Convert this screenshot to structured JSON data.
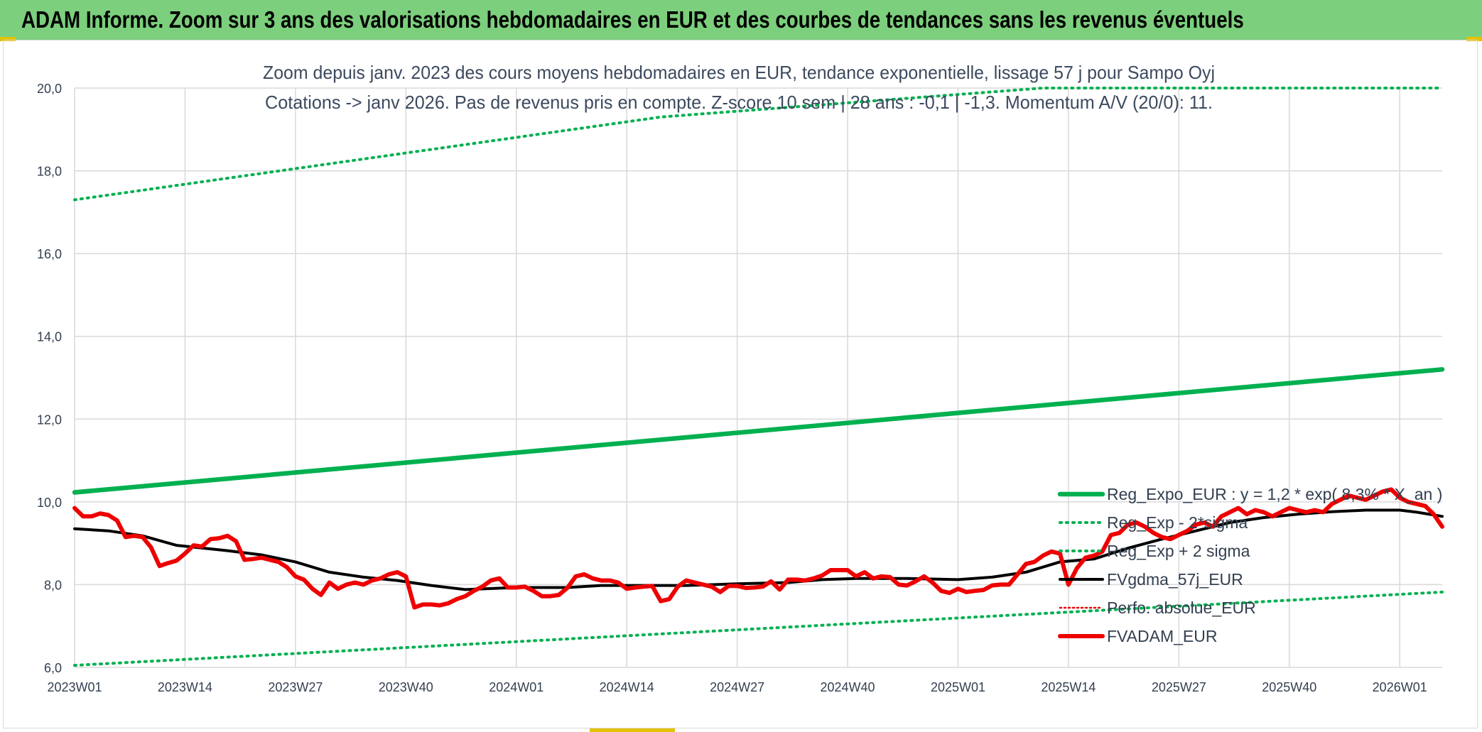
{
  "header": {
    "title": "ADAM Informe. Zoom sur 3 ans des valorisations hebdomadaires en EUR et des courbes de tendances sans les revenus éventuels"
  },
  "colors": {
    "banner": "#7ccf7c",
    "reg_expo": "#00b050",
    "fvadam": "#ee0000",
    "fvgdma": "#000000",
    "perfo": "#ee0000",
    "grid": "#d9d9d9"
  },
  "chart_data": {
    "type": "line",
    "subtitle_lines": [
      "Zoom depuis janv. 2023 des cours moyens hebdomadaires en EUR, tendance exponentielle, lissage 57 j pour Sampo Oyj",
      "Cotations -> janv 2026. Pas de revenus pris en compte. Z-score 10 sem | 28 ans : -0,1 | -1,3. Momentum A/V (20/0): 11."
    ],
    "ylim": [
      6,
      20
    ],
    "y_ticks": [
      "6,0",
      "8,0",
      "10,0",
      "12,0",
      "14,0",
      "16,0",
      "18,0",
      "20,0"
    ],
    "x_ticks": [
      "2023W01",
      "2023W14",
      "2023W27",
      "2023W40",
      "2024W01",
      "2024W14",
      "2024W27",
      "2024W40",
      "2025W01",
      "2025W14",
      "2025W27",
      "2025W40",
      "2026W01"
    ],
    "x_range_weeks": [
      0,
      161
    ],
    "grid": true,
    "legend_position": "right-bottom",
    "series": [
      {
        "name": "Reg_Expo_EUR : y = 1,2 * exp( 8,3% * X_an )",
        "style": "solid-thick",
        "color": "#00b050",
        "points": [
          [
            0,
            10.23
          ],
          [
            161,
            13.2
          ]
        ]
      },
      {
        "name": "Reg_Exp - 2*sigma",
        "style": "dotted",
        "color": "#00b050",
        "points": [
          [
            0,
            6.05
          ],
          [
            161,
            7.82
          ]
        ]
      },
      {
        "name": "Reg_Exp + 2 sigma",
        "style": "dotted",
        "color": "#00b050",
        "points": [
          [
            0,
            17.3
          ],
          [
            69,
            19.3
          ],
          [
            114,
            20.0
          ],
          [
            161,
            20.0
          ]
        ]
      },
      {
        "name": "FVgdma_57j_EUR",
        "style": "solid",
        "color": "#000000",
        "points": [
          [
            0,
            9.35
          ],
          [
            4,
            9.3
          ],
          [
            8,
            9.18
          ],
          [
            12,
            8.95
          ],
          [
            18,
            8.82
          ],
          [
            22,
            8.72
          ],
          [
            26,
            8.55
          ],
          [
            30,
            8.3
          ],
          [
            34,
            8.18
          ],
          [
            38,
            8.1
          ],
          [
            42,
            7.98
          ],
          [
            46,
            7.88
          ],
          [
            52,
            7.93
          ],
          [
            58,
            7.93
          ],
          [
            62,
            7.98
          ],
          [
            66,
            7.98
          ],
          [
            72,
            7.98
          ],
          [
            78,
            8.02
          ],
          [
            84,
            8.05
          ],
          [
            88,
            8.12
          ],
          [
            92,
            8.15
          ],
          [
            98,
            8.15
          ],
          [
            104,
            8.12
          ],
          [
            108,
            8.18
          ],
          [
            112,
            8.3
          ],
          [
            116,
            8.55
          ],
          [
            120,
            8.62
          ],
          [
            124,
            8.88
          ],
          [
            128,
            9.1
          ],
          [
            132,
            9.3
          ],
          [
            136,
            9.5
          ],
          [
            140,
            9.62
          ],
          [
            144,
            9.7
          ],
          [
            148,
            9.76
          ],
          [
            152,
            9.8
          ],
          [
            156,
            9.8
          ],
          [
            158,
            9.75
          ],
          [
            161,
            9.65
          ]
        ]
      },
      {
        "name": "Perfo. absolue_EUR",
        "style": "dotted-thin",
        "color": "#ee0000",
        "points": []
      },
      {
        "name": "FVADAM_EUR",
        "style": "solid-thick",
        "color": "#ee0000",
        "points": [
          [
            0,
            9.85
          ],
          [
            1,
            9.65
          ],
          [
            2,
            9.65
          ],
          [
            3,
            9.72
          ],
          [
            4,
            9.68
          ],
          [
            5,
            9.55
          ],
          [
            6,
            9.15
          ],
          [
            7,
            9.18
          ],
          [
            8,
            9.15
          ],
          [
            9,
            8.9
          ],
          [
            10,
            8.45
          ],
          [
            11,
            8.52
          ],
          [
            12,
            8.58
          ],
          [
            13,
            8.75
          ],
          [
            14,
            8.95
          ],
          [
            15,
            8.92
          ],
          [
            16,
            9.1
          ],
          [
            17,
            9.12
          ],
          [
            18,
            9.18
          ],
          [
            19,
            9.05
          ],
          [
            20,
            8.6
          ],
          [
            21,
            8.62
          ],
          [
            22,
            8.65
          ],
          [
            23,
            8.6
          ],
          [
            24,
            8.55
          ],
          [
            25,
            8.42
          ],
          [
            26,
            8.2
          ],
          [
            27,
            8.12
          ],
          [
            28,
            7.9
          ],
          [
            29,
            7.75
          ],
          [
            30,
            8.05
          ],
          [
            31,
            7.9
          ],
          [
            32,
            8.0
          ],
          [
            33,
            8.05
          ],
          [
            34,
            8.0
          ],
          [
            35,
            8.1
          ],
          [
            36,
            8.15
          ],
          [
            37,
            8.25
          ],
          [
            38,
            8.3
          ],
          [
            39,
            8.2
          ],
          [
            40,
            7.45
          ],
          [
            41,
            7.52
          ],
          [
            42,
            7.52
          ],
          [
            43,
            7.5
          ],
          [
            44,
            7.55
          ],
          [
            45,
            7.65
          ],
          [
            46,
            7.72
          ],
          [
            47,
            7.85
          ],
          [
            48,
            7.95
          ],
          [
            49,
            8.1
          ],
          [
            50,
            8.15
          ],
          [
            51,
            7.93
          ],
          [
            52,
            7.93
          ],
          [
            53,
            7.95
          ],
          [
            54,
            7.85
          ],
          [
            55,
            7.72
          ],
          [
            56,
            7.72
          ],
          [
            57,
            7.75
          ],
          [
            58,
            7.92
          ],
          [
            59,
            8.2
          ],
          [
            60,
            8.25
          ],
          [
            61,
            8.15
          ],
          [
            62,
            8.1
          ],
          [
            63,
            8.1
          ],
          [
            64,
            8.05
          ],
          [
            65,
            7.9
          ],
          [
            66,
            7.93
          ],
          [
            67,
            7.95
          ],
          [
            68,
            7.97
          ],
          [
            69,
            7.6
          ],
          [
            70,
            7.65
          ],
          [
            71,
            7.95
          ],
          [
            72,
            8.1
          ],
          [
            73,
            8.05
          ],
          [
            74,
            8.0
          ],
          [
            75,
            7.95
          ],
          [
            76,
            7.82
          ],
          [
            77,
            7.97
          ],
          [
            78,
            7.97
          ],
          [
            79,
            7.92
          ],
          [
            80,
            7.93
          ],
          [
            81,
            7.95
          ],
          [
            82,
            8.08
          ],
          [
            83,
            7.88
          ],
          [
            84,
            8.12
          ],
          [
            85,
            8.12
          ],
          [
            86,
            8.1
          ],
          [
            87,
            8.15
          ],
          [
            88,
            8.22
          ],
          [
            89,
            8.35
          ],
          [
            90,
            8.35
          ],
          [
            91,
            8.35
          ],
          [
            92,
            8.2
          ],
          [
            93,
            8.3
          ],
          [
            94,
            8.15
          ],
          [
            95,
            8.2
          ],
          [
            96,
            8.18
          ],
          [
            97,
            8.0
          ],
          [
            98,
            7.98
          ],
          [
            99,
            8.08
          ],
          [
            100,
            8.2
          ],
          [
            101,
            8.05
          ],
          [
            102,
            7.85
          ],
          [
            103,
            7.8
          ],
          [
            104,
            7.9
          ],
          [
            105,
            7.82
          ],
          [
            106,
            7.85
          ],
          [
            107,
            7.87
          ],
          [
            108,
            7.98
          ],
          [
            109,
            8.0
          ],
          [
            110,
            8.0
          ],
          [
            111,
            8.25
          ],
          [
            112,
            8.5
          ],
          [
            113,
            8.55
          ],
          [
            114,
            8.7
          ],
          [
            115,
            8.8
          ],
          [
            116,
            8.75
          ],
          [
            117,
            8.0
          ],
          [
            118,
            8.4
          ],
          [
            119,
            8.65
          ],
          [
            120,
            8.7
          ],
          [
            121,
            8.8
          ],
          [
            122,
            9.2
          ],
          [
            123,
            9.25
          ],
          [
            124,
            9.45
          ],
          [
            125,
            9.5
          ],
          [
            126,
            9.4
          ],
          [
            127,
            9.25
          ],
          [
            128,
            9.15
          ],
          [
            129,
            9.1
          ],
          [
            130,
            9.2
          ],
          [
            131,
            9.3
          ],
          [
            132,
            9.45
          ],
          [
            133,
            9.5
          ],
          [
            134,
            9.4
          ],
          [
            135,
            9.65
          ],
          [
            136,
            9.75
          ],
          [
            137,
            9.85
          ],
          [
            138,
            9.7
          ],
          [
            139,
            9.8
          ],
          [
            140,
            9.75
          ],
          [
            141,
            9.65
          ],
          [
            142,
            9.75
          ],
          [
            143,
            9.85
          ],
          [
            144,
            9.8
          ],
          [
            145,
            9.75
          ],
          [
            146,
            9.8
          ],
          [
            147,
            9.75
          ],
          [
            148,
            9.95
          ],
          [
            149,
            10.05
          ],
          [
            150,
            10.15
          ],
          [
            151,
            10.1
          ],
          [
            152,
            10.05
          ],
          [
            153,
            10.15
          ],
          [
            154,
            10.25
          ],
          [
            155,
            10.3
          ],
          [
            156,
            10.1
          ],
          [
            157,
            10.0
          ],
          [
            158,
            9.95
          ],
          [
            159,
            9.9
          ],
          [
            160,
            9.7
          ],
          [
            161,
            9.4
          ]
        ]
      }
    ]
  }
}
